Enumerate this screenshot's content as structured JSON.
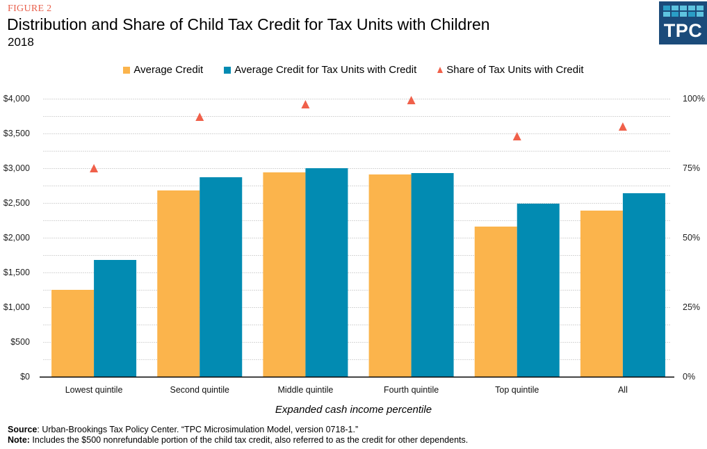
{
  "header": {
    "figure_label": "FIGURE 2",
    "title": "Distribution and Share of Child Tax Credit for Tax Units with Children",
    "subtitle": "2018",
    "logo_text": "TPC"
  },
  "colors": {
    "average_credit": "#fbb44c",
    "average_credit_with_credit": "#028bb2",
    "share": "#f0604a",
    "figure_label": "#e8604c",
    "logo_bg": "#1b4b7a"
  },
  "chart_data": {
    "type": "bar",
    "title": "Distribution and Share of Child Tax Credit for Tax Units with Children",
    "subtitle": "2018",
    "xlabel": "Expanded cash income percentile",
    "ylabel": "",
    "y2label": "",
    "categories": [
      "Lowest quintile",
      "Second quintile",
      "Middle quintile",
      "Fourth quintile",
      "Top quintile",
      "All"
    ],
    "series": [
      {
        "name": "Average Credit",
        "type": "bar",
        "axis": "left",
        "values": [
          1250,
          2680,
          2940,
          2910,
          2160,
          2390
        ]
      },
      {
        "name": "Average Credit for Tax Units with Credit",
        "type": "bar",
        "axis": "left",
        "values": [
          1680,
          2870,
          3000,
          2930,
          2490,
          2640
        ]
      },
      {
        "name": "Share of Tax Units with Credit",
        "type": "scatter",
        "marker": "triangle",
        "axis": "right",
        "values": [
          75,
          93.5,
          98,
          99.5,
          86.5,
          90
        ]
      }
    ],
    "ylim": [
      0,
      4000
    ],
    "y2lim": [
      0,
      100
    ],
    "yticks": [
      "$0",
      "$500",
      "$1,000",
      "$1,500",
      "$2,000",
      "$2,500",
      "$3,000",
      "$3,500",
      "$4,000"
    ],
    "y2ticks": [
      "0%",
      "25%",
      "50%",
      "75%",
      "100%"
    ],
    "grid": true,
    "legend_position": "top-center"
  },
  "footer": {
    "source_label": "Source",
    "source_text": ": Urban-Brookings Tax Policy Center.  “TPC Microsimulation Model, version 0718-1.”",
    "note_label": "Note:",
    "note_text": " Includes the $500 nonrefundable  portion of the child  tax credit, also referred to as the credit for other dependents."
  }
}
